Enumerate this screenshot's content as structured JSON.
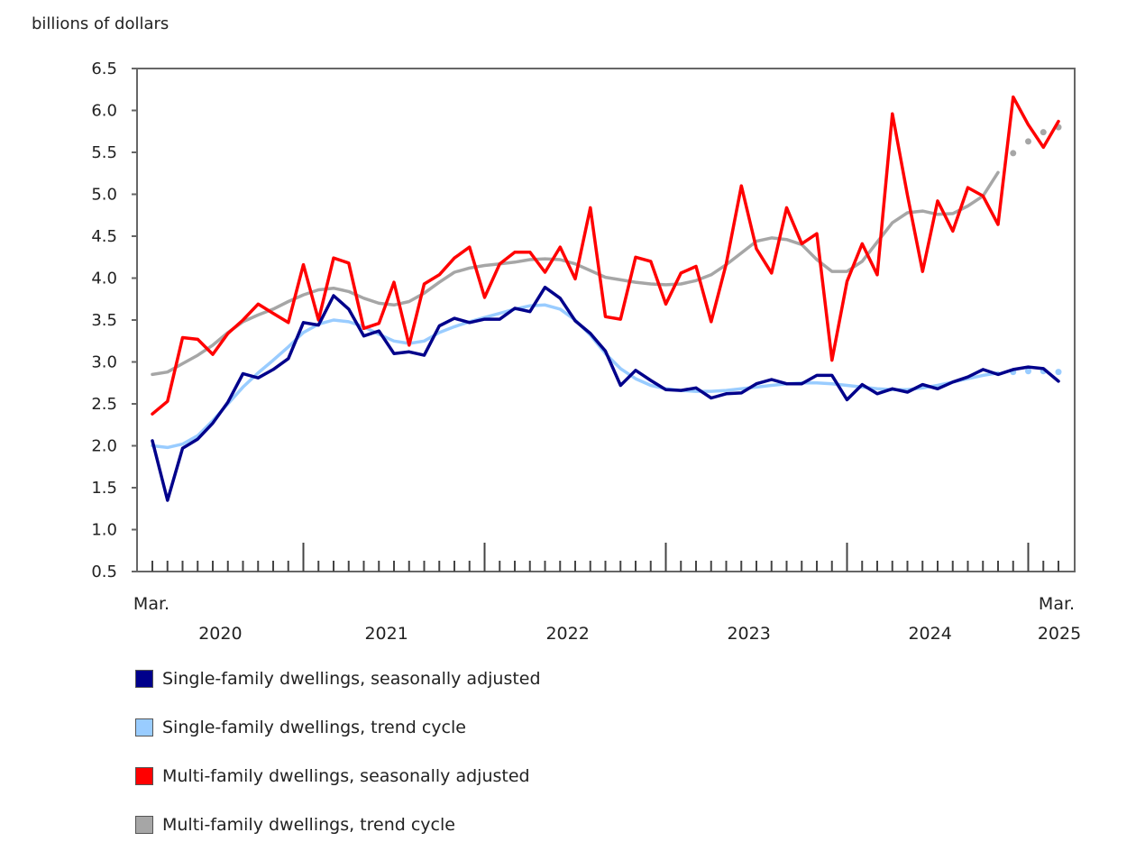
{
  "chart_data": {
    "type": "line",
    "ylabel": "billions of dollars",
    "ylim": [
      0.5,
      6.5
    ],
    "yticks": [
      "6.5",
      "6.0",
      "5.5",
      "5.0",
      "4.5",
      "4.0",
      "3.5",
      "3.0",
      "2.5",
      "2.0",
      "1.5",
      "1.0",
      "0.5"
    ],
    "x_start_label": "Mar.",
    "x_end_label": "Mar.",
    "year_labels": [
      "2020",
      "2021",
      "2022",
      "2023",
      "2024",
      "2025"
    ],
    "n_months": 61,
    "series": [
      {
        "name": "Single-family dwellings, seasonally adjusted",
        "color": "#00008b",
        "style": "solid",
        "values": [
          2.06,
          1.35,
          1.97,
          2.08,
          2.27,
          2.52,
          2.86,
          2.81,
          2.91,
          3.04,
          3.47,
          3.44,
          3.79,
          3.63,
          3.31,
          3.37,
          3.1,
          3.12,
          3.08,
          3.43,
          3.52,
          3.47,
          3.51,
          3.51,
          3.64,
          3.6,
          3.89,
          3.76,
          3.49,
          3.34,
          3.13,
          2.72,
          2.9,
          2.78,
          2.67,
          2.66,
          2.69,
          2.57,
          2.62,
          2.63,
          2.74,
          2.79,
          2.74,
          2.74,
          2.84,
          2.84,
          2.55,
          2.73,
          2.62,
          2.68,
          2.64,
          2.73,
          2.68,
          2.76,
          2.82,
          2.91,
          2.85,
          2.91,
          2.94,
          2.92,
          2.77
        ]
      },
      {
        "name": "Single-family dwellings, trend cycle",
        "color": "#99ccff",
        "style": "solid",
        "values": [
          2.0,
          1.98,
          2.02,
          2.12,
          2.3,
          2.5,
          2.7,
          2.87,
          3.02,
          3.18,
          3.35,
          3.45,
          3.5,
          3.48,
          3.42,
          3.33,
          3.25,
          3.22,
          3.25,
          3.35,
          3.42,
          3.48,
          3.53,
          3.58,
          3.63,
          3.67,
          3.68,
          3.63,
          3.5,
          3.32,
          3.1,
          2.92,
          2.8,
          2.72,
          2.68,
          2.66,
          2.65,
          2.65,
          2.66,
          2.68,
          2.7,
          2.72,
          2.74,
          2.75,
          2.75,
          2.74,
          2.72,
          2.7,
          2.68,
          2.67,
          2.67,
          2.69,
          2.72,
          2.76,
          2.8,
          2.84,
          2.87,
          2.88,
          2.89,
          2.89,
          2.88
        ],
        "dotted_from_index": 57
      },
      {
        "name": "Multi-family dwellings, seasonally adjusted",
        "color": "#ff0000",
        "style": "solid",
        "values": [
          2.38,
          2.53,
          3.29,
          3.27,
          3.09,
          3.34,
          3.5,
          3.69,
          3.58,
          3.47,
          4.16,
          3.5,
          4.24,
          4.18,
          3.4,
          3.46,
          3.95,
          3.2,
          3.93,
          4.04,
          4.24,
          4.37,
          3.77,
          4.17,
          4.31,
          4.31,
          4.07,
          4.37,
          3.99,
          4.84,
          3.54,
          3.51,
          4.25,
          4.2,
          3.69,
          4.06,
          4.14,
          3.48,
          4.17,
          5.1,
          4.35,
          4.06,
          4.84,
          4.41,
          4.53,
          3.02,
          3.96,
          4.41,
          4.04,
          5.96,
          4.99,
          4.08,
          4.92,
          4.56,
          5.08,
          4.98,
          4.64,
          6.16,
          5.83,
          5.56,
          5.87
        ]
      },
      {
        "name": "Multi-family dwellings, trend cycle",
        "color": "#a6a6a6",
        "style": "solid",
        "values": [
          2.85,
          2.88,
          2.98,
          3.08,
          3.2,
          3.35,
          3.48,
          3.56,
          3.63,
          3.72,
          3.8,
          3.86,
          3.88,
          3.84,
          3.76,
          3.7,
          3.68,
          3.72,
          3.82,
          3.95,
          4.07,
          4.12,
          4.15,
          4.17,
          4.19,
          4.22,
          4.23,
          4.22,
          4.17,
          4.09,
          4.01,
          3.98,
          3.95,
          3.93,
          3.92,
          3.93,
          3.97,
          4.04,
          4.16,
          4.3,
          4.44,
          4.48,
          4.46,
          4.4,
          4.22,
          4.08,
          4.08,
          4.2,
          4.43,
          4.66,
          4.78,
          4.8,
          4.76,
          4.77,
          4.86,
          4.98,
          5.26,
          5.49,
          5.63,
          5.74,
          5.8
        ],
        "dotted_from_index": 57
      }
    ],
    "legend_position": "bottom"
  }
}
